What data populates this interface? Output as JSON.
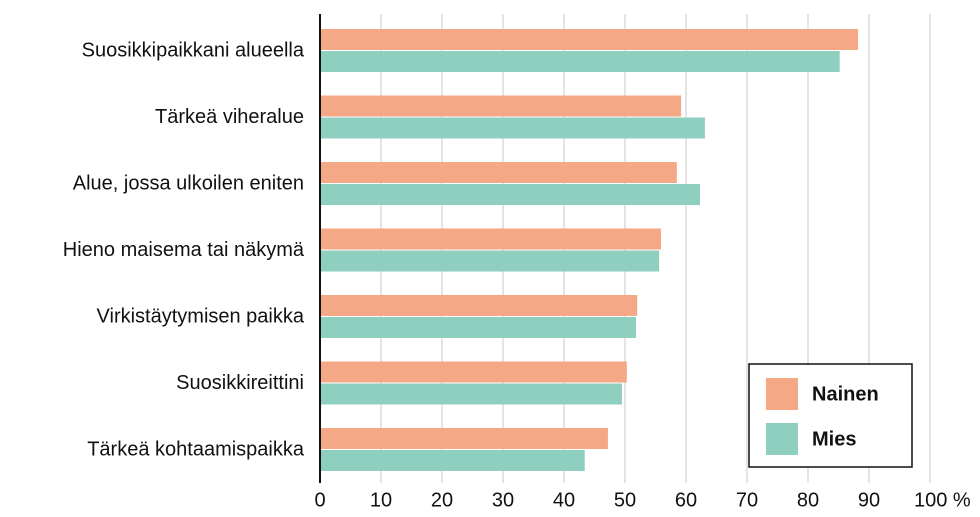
{
  "chart_data": {
    "type": "bar",
    "orientation": "horizontal",
    "categories": [
      "Suosikkipaikkani alueella",
      "Tärkeä viheralue",
      "Alue, jossa ulkoilen eniten",
      "Hieno maisema tai näkymä",
      "Virkistäytymisen paikka",
      "Suosikkireittini",
      "Tärkeä kohtaamispaikka"
    ],
    "series": [
      {
        "name": "Nainen",
        "color": "#f5a886",
        "values": [
          88.2,
          59.2,
          58.5,
          55.9,
          52.0,
          50.3,
          47.2
        ]
      },
      {
        "name": "Mies",
        "color": "#8fcfc0",
        "values": [
          85.2,
          63.1,
          62.3,
          55.6,
          51.8,
          49.5,
          43.4
        ]
      }
    ],
    "xlim": [
      0,
      100
    ],
    "xticks": [
      0,
      10,
      20,
      30,
      40,
      50,
      60,
      70,
      80,
      90,
      {
        "value": 100,
        "label": "100 %"
      }
    ],
    "grid": true,
    "legend": "lower right"
  }
}
